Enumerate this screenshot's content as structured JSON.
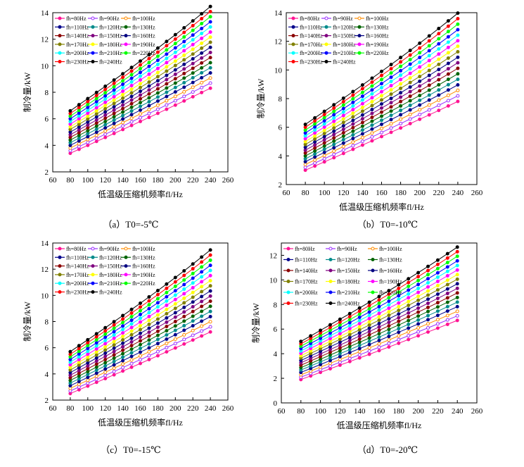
{
  "chart_data": [
    {
      "type": "line",
      "caption": "（a）T0=-5℃",
      "xlabel": "低温级压缩机频率fl/Hz",
      "ylabel": "制冷量/kW",
      "xlim": [
        60,
        260
      ],
      "ylim": [
        2,
        14
      ],
      "xticks": [
        60,
        80,
        100,
        120,
        140,
        160,
        180,
        200,
        220,
        240,
        260
      ],
      "yticks": [
        2,
        4,
        6,
        8,
        10,
        12,
        14
      ],
      "grid": false,
      "legend_placement": "top-left",
      "x": [
        80,
        90,
        100,
        110,
        120,
        130,
        140,
        150,
        160,
        170,
        180,
        190,
        200,
        210,
        220,
        230,
        240
      ],
      "y80": 3.4,
      "y240": 8.2,
      "top80": 6.6,
      "top240": 14.1
    },
    {
      "type": "line",
      "caption": "（b）T0=-10℃",
      "xlabel": "低温级压缩机频率fl/Hz",
      "ylabel": "制冷量/kW",
      "xlim": [
        60,
        260
      ],
      "ylim": [
        2,
        14
      ],
      "xticks": [
        60,
        80,
        100,
        120,
        140,
        160,
        180,
        200,
        220,
        240,
        260
      ],
      "yticks": [
        2,
        4,
        6,
        8,
        10,
        12,
        14
      ],
      "grid": false,
      "legend_placement": "top-left",
      "x": [
        80,
        90,
        100,
        110,
        120,
        130,
        140,
        150,
        160,
        170,
        180,
        190,
        200,
        210,
        220,
        230,
        240
      ],
      "y80": 3.0,
      "y240": 7.7,
      "top80": 6.2,
      "top240": 13.6
    },
    {
      "type": "line",
      "caption": "（c）T0=-15℃",
      "xlabel": "低温级压缩机频率fl/Hz",
      "ylabel": "制冷量/kW",
      "xlim": [
        60,
        260
      ],
      "ylim": [
        2,
        14
      ],
      "xticks": [
        60,
        80,
        100,
        120,
        140,
        160,
        180,
        200,
        220,
        240,
        260
      ],
      "yticks": [
        2,
        4,
        6,
        8,
        10,
        12,
        14
      ],
      "grid": false,
      "legend_placement": "top-left",
      "x": [
        80,
        90,
        100,
        110,
        120,
        130,
        140,
        150,
        160,
        170,
        180,
        190,
        200,
        210,
        220,
        230,
        240
      ],
      "y80": 2.5,
      "y240": 7.1,
      "top80": 5.7,
      "top240": 13.1
    },
    {
      "type": "line",
      "caption": "（d）T0=-20℃",
      "xlabel": "低温级压缩机频率fl/Hz",
      "ylabel": "制冷量/kW",
      "xlim": [
        60,
        260
      ],
      "ylim": [
        0,
        13
      ],
      "xticks": [
        60,
        80,
        100,
        120,
        140,
        160,
        180,
        200,
        220,
        240,
        260
      ],
      "yticks": [
        0,
        2,
        4,
        6,
        8,
        10,
        12
      ],
      "grid": false,
      "legend_placement": "top-left",
      "x": [
        80,
        90,
        100,
        110,
        120,
        130,
        140,
        150,
        160,
        170,
        180,
        190,
        200,
        210,
        220,
        230,
        240
      ],
      "y80": 1.9,
      "y240": 6.6,
      "top80": 5.0,
      "top240": 12.3
    }
  ],
  "series": [
    {
      "name": "fh=80Hz",
      "color": "#ff1493",
      "marker": "circle-filled"
    },
    {
      "name": "fh=90Hz",
      "color": "#9b30ff",
      "marker": "circle-open"
    },
    {
      "name": "fh=100Hz",
      "color": "#ff8c00",
      "marker": "circle-open"
    },
    {
      "name": "fh=110Hz",
      "color": "#00008b",
      "marker": "circle-filled"
    },
    {
      "name": "fh=120Hz",
      "color": "#008b8b",
      "marker": "circle-filled"
    },
    {
      "name": "fh=130Hz",
      "color": "#006400",
      "marker": "circle-filled"
    },
    {
      "name": "fh=140Hz",
      "color": "#8b0000",
      "marker": "circle-filled"
    },
    {
      "name": "fh=150Hz",
      "color": "#800080",
      "marker": "circle-filled"
    },
    {
      "name": "fh=160Hz",
      "color": "#000080",
      "marker": "circle-filled"
    },
    {
      "name": "fh=170Hz",
      "color": "#808000",
      "marker": "circle-filled"
    },
    {
      "name": "fh=180Hz",
      "color": "#ffff00",
      "marker": "circle-filled"
    },
    {
      "name": "fh=190Hz",
      "color": "#ff00ff",
      "marker": "circle-filled"
    },
    {
      "name": "fh=200Hz",
      "color": "#00ffff",
      "marker": "circle-filled"
    },
    {
      "name": "fh=210Hz",
      "color": "#0000ff",
      "marker": "circle-filled"
    },
    {
      "name": "fh=220Hz",
      "color": "#00ff00",
      "marker": "circle-filled"
    },
    {
      "name": "fh=230Hz",
      "color": "#ff0000",
      "marker": "circle-filled"
    },
    {
      "name": "fh=240Hz",
      "color": "#000000",
      "marker": "circle-filled"
    }
  ]
}
